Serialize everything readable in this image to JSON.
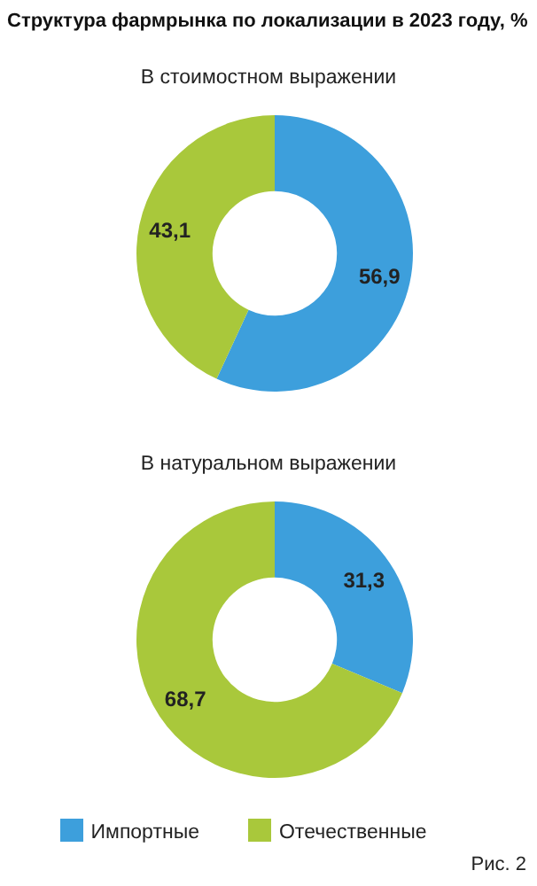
{
  "chart_data": [
    {
      "type": "donut",
      "title": "Структура фармрынка по локализации в 2023 году, %",
      "subtitle": "В стоимостном выражении",
      "categories": [
        null,
        null
      ],
      "values": [
        56.9,
        43.1
      ],
      "value_labels": [
        "56,9",
        "43,1"
      ],
      "colors": [
        "#3d9fdc",
        "#a9c83b"
      ],
      "legend": false
    },
    {
      "type": "donut",
      "title": "В натуральном выражении",
      "categories": [
        "Импортные",
        "Отечественные"
      ],
      "values": [
        31.3,
        68.7
      ],
      "value_labels": [
        "31,3",
        "68,7"
      ],
      "colors": [
        "#3d9fdc",
        "#a9c83b"
      ],
      "legend": "bottom",
      "annotations": [
        "Рис. 2"
      ]
    }
  ]
}
